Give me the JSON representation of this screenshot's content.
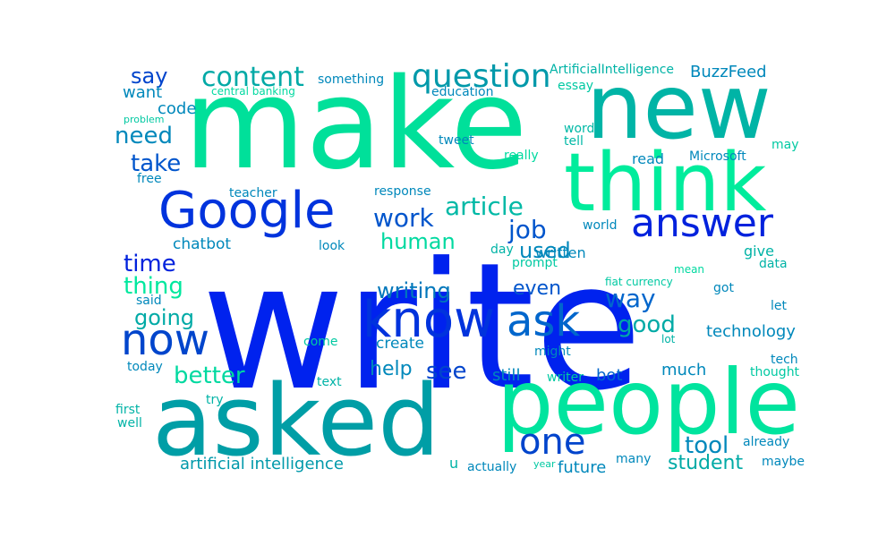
{
  "words": [
    {
      "text": "write",
      "color": "#0022ee"
    },
    {
      "text": "make",
      "color": "#00e09a"
    },
    {
      "text": "new",
      "color": "#00b4a6"
    },
    {
      "text": "think",
      "color": "#00ec9c"
    },
    {
      "text": "asked",
      "color": "#009ea6"
    },
    {
      "text": "people",
      "color": "#00e49e"
    },
    {
      "text": "Google",
      "color": "#0033dd"
    },
    {
      "text": "know",
      "color": "#0033dd"
    },
    {
      "text": "answer",
      "color": "#0022dd"
    },
    {
      "text": "now",
      "color": "#0045cc"
    },
    {
      "text": "ask",
      "color": "#0066cc"
    },
    {
      "text": "one",
      "color": "#0044cc"
    },
    {
      "text": "question",
      "color": "#0099aa"
    },
    {
      "text": "content",
      "color": "#00a9a6"
    },
    {
      "text": "article",
      "color": "#00b9a6"
    },
    {
      "text": "work",
      "color": "#0055cc"
    },
    {
      "text": "job",
      "color": "#0055cc"
    },
    {
      "text": "human",
      "color": "#00d9a0"
    },
    {
      "text": "used",
      "color": "#0088bb"
    },
    {
      "text": "time",
      "color": "#0022dd"
    },
    {
      "text": "thing",
      "color": "#00e89e"
    },
    {
      "text": "way",
      "color": "#0066cc"
    },
    {
      "text": "good",
      "color": "#00aaa6"
    },
    {
      "text": "writing",
      "color": "#0077bb"
    },
    {
      "text": "even",
      "color": "#0055cc"
    },
    {
      "text": "going",
      "color": "#00aaa6"
    },
    {
      "text": "need",
      "color": "#0088bb"
    },
    {
      "text": "take",
      "color": "#0055cc"
    },
    {
      "text": "say",
      "color": "#0044cc"
    },
    {
      "text": "want",
      "color": "#0088bb"
    },
    {
      "text": "code",
      "color": "#0088bb"
    },
    {
      "text": "better",
      "color": "#00d9a0"
    },
    {
      "text": "help",
      "color": "#0088bb"
    },
    {
      "text": "see",
      "color": "#0044cc"
    },
    {
      "text": "tool",
      "color": "#0088bb"
    },
    {
      "text": "student",
      "color": "#00aaa6"
    },
    {
      "text": "artificial intelligence",
      "color": "#0099aa"
    },
    {
      "text": "technology",
      "color": "#0088bb"
    },
    {
      "text": "create",
      "color": "#0088bb"
    },
    {
      "text": "still",
      "color": "#0088bb"
    },
    {
      "text": "bot",
      "color": "#0066cc"
    },
    {
      "text": "much",
      "color": "#0088bb"
    },
    {
      "text": "future",
      "color": "#0088bb"
    },
    {
      "text": "chatbot",
      "color": "#0088bb"
    },
    {
      "text": "BuzzFeed",
      "color": "#0088bb"
    },
    {
      "text": "ArtificialIntelligence",
      "color": "#00b3a6"
    },
    {
      "text": "something",
      "color": "#0088bb"
    },
    {
      "text": "education",
      "color": "#0088bb"
    },
    {
      "text": "essay",
      "color": "#00c9a2"
    },
    {
      "text": "central banking",
      "color": "#00d9a0"
    },
    {
      "text": "problem",
      "color": "#00c9a2"
    },
    {
      "text": "word",
      "color": "#00b9a6"
    },
    {
      "text": "tell",
      "color": "#00b9a6"
    },
    {
      "text": "may",
      "color": "#00c9a2"
    },
    {
      "text": "tweet",
      "color": "#0088bb"
    },
    {
      "text": "really",
      "color": "#00d9a0"
    },
    {
      "text": "read",
      "color": "#0088bb"
    },
    {
      "text": "Microsoft",
      "color": "#0088bb"
    },
    {
      "text": "free",
      "color": "#0088bb"
    },
    {
      "text": "teacher",
      "color": "#0088bb"
    },
    {
      "text": "response",
      "color": "#0088bb"
    },
    {
      "text": "world",
      "color": "#0088bb"
    },
    {
      "text": "give",
      "color": "#00b3a6"
    },
    {
      "text": "look",
      "color": "#0088bb"
    },
    {
      "text": "written",
      "color": "#0088bb"
    },
    {
      "text": "data",
      "color": "#00b3a6"
    },
    {
      "text": "day",
      "color": "#00b3a6"
    },
    {
      "text": "prompt",
      "color": "#00c9a2"
    },
    {
      "text": "mean",
      "color": "#00d9a0"
    },
    {
      "text": "fiat currency",
      "color": "#00c9a2"
    },
    {
      "text": "got",
      "color": "#0088bb"
    },
    {
      "text": "said",
      "color": "#0088bb"
    },
    {
      "text": "let",
      "color": "#0088bb"
    },
    {
      "text": "come",
      "color": "#00c9a2"
    },
    {
      "text": "lot",
      "color": "#00b3a6"
    },
    {
      "text": "might",
      "color": "#0088bb"
    },
    {
      "text": "tech",
      "color": "#0088bb"
    },
    {
      "text": "thought",
      "color": "#00c9a2"
    },
    {
      "text": "today",
      "color": "#0088bb"
    },
    {
      "text": "text",
      "color": "#00b3a6"
    },
    {
      "text": "writer",
      "color": "#00c9a2"
    },
    {
      "text": "try",
      "color": "#00b3a6"
    },
    {
      "text": "first",
      "color": "#00b3a6"
    },
    {
      "text": "well",
      "color": "#00b3a6"
    },
    {
      "text": "already",
      "color": "#0088bb"
    },
    {
      "text": "u",
      "color": "#00b3a6"
    },
    {
      "text": "actually",
      "color": "#0088bb"
    },
    {
      "text": "year",
      "color": "#00c9a2"
    },
    {
      "text": "many",
      "color": "#0088bb"
    },
    {
      "text": "maybe",
      "color": "#0088bb"
    }
  ]
}
